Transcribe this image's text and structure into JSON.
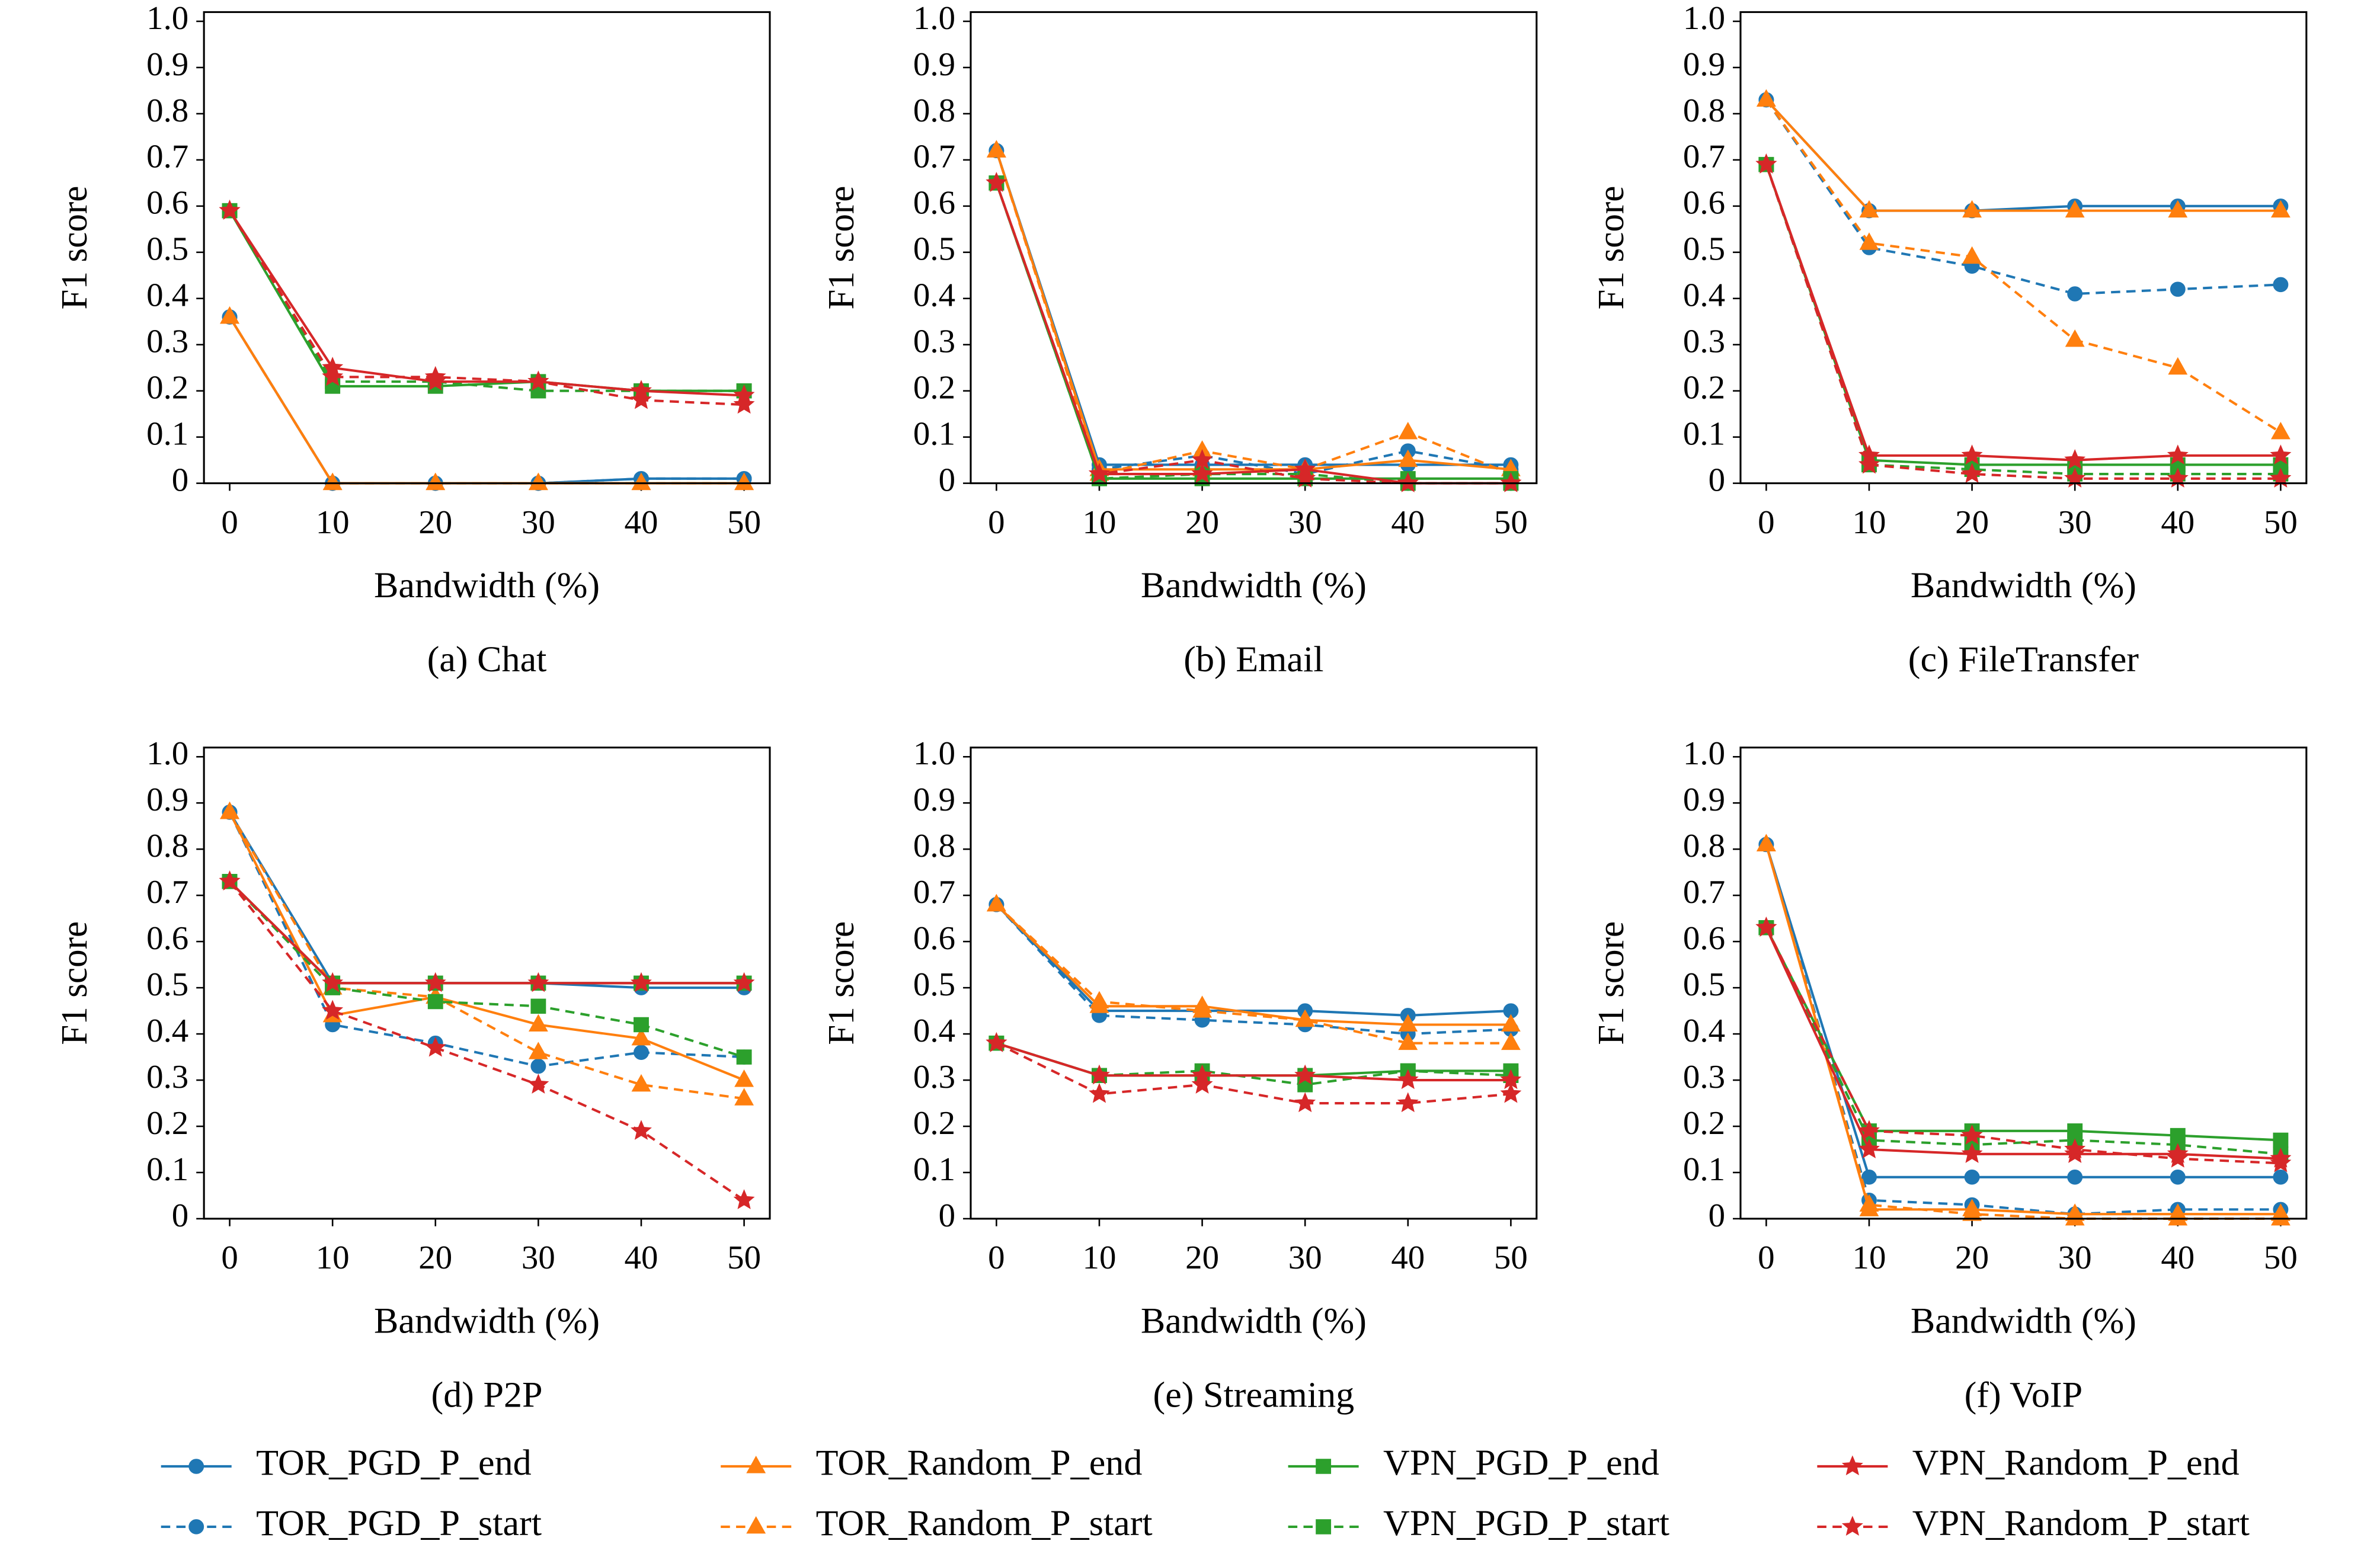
{
  "chart_data": [
    {
      "type": "line",
      "title": "(a) Chat",
      "xlabel": "Bandwidth (%)",
      "ylabel": "F1 score",
      "x": [
        0,
        10,
        20,
        30,
        40,
        50
      ],
      "xlim": [
        -2.5,
        52.5
      ],
      "ylim": [
        0,
        1.02
      ],
      "xticks": [
        0,
        10,
        20,
        30,
        40,
        50
      ],
      "yticks": [
        0,
        0.1,
        0.2,
        0.3,
        0.4,
        0.5,
        0.6,
        0.7,
        0.8,
        0.9,
        {
          "value": 1,
          "label": "1.0"
        }
      ],
      "series": [
        {
          "name": "TOR_PGD_P_end",
          "color": "#1f77b4",
          "marker": "circle",
          "dashed": false,
          "values": [
            0.36,
            0,
            0,
            0,
            0.01,
            0.01
          ]
        },
        {
          "name": "TOR_PGD_P_start",
          "color": "#1f77b4",
          "marker": "circle",
          "dashed": true,
          "values": [
            0.36,
            0,
            0,
            0,
            0.01,
            0.01
          ]
        },
        {
          "name": "TOR_Random_P_end",
          "color": "#ff7f0e",
          "marker": "triangle",
          "dashed": false,
          "values": [
            0.36,
            0,
            0,
            0,
            0,
            0
          ]
        },
        {
          "name": "TOR_Random_P_start",
          "color": "#ff7f0e",
          "marker": "triangle",
          "dashed": true,
          "values": [
            0.36,
            0,
            0,
            0,
            0,
            0
          ]
        },
        {
          "name": "VPN_PGD_P_end",
          "color": "#2ca02c",
          "marker": "square",
          "dashed": false,
          "values": [
            0.59,
            0.21,
            0.21,
            0.22,
            0.2,
            0.2
          ]
        },
        {
          "name": "VPN_PGD_P_start",
          "color": "#2ca02c",
          "marker": "square",
          "dashed": true,
          "values": [
            0.59,
            0.22,
            0.22,
            0.2,
            0.2,
            0.2
          ]
        },
        {
          "name": "VPN_Random_P_end",
          "color": "#d62728",
          "marker": "star",
          "dashed": false,
          "values": [
            0.59,
            0.25,
            0.22,
            0.22,
            0.2,
            0.19
          ]
        },
        {
          "name": "VPN_Random_P_start",
          "color": "#d62728",
          "marker": "star",
          "dashed": true,
          "values": [
            0.59,
            0.23,
            0.23,
            0.22,
            0.18,
            0.17
          ]
        }
      ]
    },
    {
      "type": "line",
      "title": "(b) Email",
      "xlabel": "Bandwidth (%)",
      "ylabel": "F1 score",
      "x": [
        0,
        10,
        20,
        30,
        40,
        50
      ],
      "xlim": [
        -2.5,
        52.5
      ],
      "ylim": [
        0,
        1.02
      ],
      "xticks": [
        0,
        10,
        20,
        30,
        40,
        50
      ],
      "yticks": [
        0,
        0.1,
        0.2,
        0.3,
        0.4,
        0.5,
        0.6,
        0.7,
        0.8,
        0.9,
        {
          "value": 1,
          "label": "1.0"
        }
      ],
      "series": [
        {
          "name": "TOR_PGD_P_end",
          "color": "#1f77b4",
          "marker": "circle",
          "dashed": false,
          "values": [
            0.72,
            0.04,
            0.04,
            0.04,
            0.04,
            0.04
          ]
        },
        {
          "name": "TOR_PGD_P_start",
          "color": "#1f77b4",
          "marker": "circle",
          "dashed": true,
          "values": [
            0.72,
            0.03,
            0.06,
            0.02,
            0.07,
            0.03
          ]
        },
        {
          "name": "TOR_Random_P_end",
          "color": "#ff7f0e",
          "marker": "triangle",
          "dashed": false,
          "values": [
            0.72,
            0.03,
            0.03,
            0.03,
            0.05,
            0.03
          ]
        },
        {
          "name": "TOR_Random_P_start",
          "color": "#ff7f0e",
          "marker": "triangle",
          "dashed": true,
          "values": [
            0.72,
            0.02,
            0.07,
            0.03,
            0.11,
            0.02
          ]
        },
        {
          "name": "VPN_PGD_P_end",
          "color": "#2ca02c",
          "marker": "square",
          "dashed": false,
          "values": [
            0.65,
            0.01,
            0.01,
            0.01,
            0.01,
            0.01
          ]
        },
        {
          "name": "VPN_PGD_P_start",
          "color": "#2ca02c",
          "marker": "square",
          "dashed": true,
          "values": [
            0.65,
            0.01,
            0.02,
            0.02,
            0,
            0
          ]
        },
        {
          "name": "VPN_Random_P_end",
          "color": "#d62728",
          "marker": "star",
          "dashed": false,
          "values": [
            0.65,
            0.02,
            0.02,
            0.03,
            0,
            0
          ]
        },
        {
          "name": "VPN_Random_P_start",
          "color": "#d62728",
          "marker": "star",
          "dashed": true,
          "values": [
            0.65,
            0.02,
            0.05,
            0.01,
            0,
            0
          ]
        }
      ]
    },
    {
      "type": "line",
      "title": "(c) FileTransfer",
      "xlabel": "Bandwidth (%)",
      "ylabel": "F1 score",
      "x": [
        0,
        10,
        20,
        30,
        40,
        50
      ],
      "xlim": [
        -2.5,
        52.5
      ],
      "ylim": [
        0,
        1.02
      ],
      "xticks": [
        0,
        10,
        20,
        30,
        40,
        50
      ],
      "yticks": [
        0,
        0.1,
        0.2,
        0.3,
        0.4,
        0.5,
        0.6,
        0.7,
        0.8,
        0.9,
        {
          "value": 1,
          "label": "1.0"
        }
      ],
      "series": [
        {
          "name": "TOR_PGD_P_end",
          "color": "#1f77b4",
          "marker": "circle",
          "dashed": false,
          "values": [
            0.83,
            0.59,
            0.59,
            0.6,
            0.6,
            0.6
          ]
        },
        {
          "name": "TOR_PGD_P_start",
          "color": "#1f77b4",
          "marker": "circle",
          "dashed": true,
          "values": [
            0.83,
            0.51,
            0.47,
            0.41,
            0.42,
            0.43
          ]
        },
        {
          "name": "TOR_Random_P_end",
          "color": "#ff7f0e",
          "marker": "triangle",
          "dashed": false,
          "values": [
            0.83,
            0.59,
            0.59,
            0.59,
            0.59,
            0.59
          ]
        },
        {
          "name": "TOR_Random_P_start",
          "color": "#ff7f0e",
          "marker": "triangle",
          "dashed": true,
          "values": [
            0.83,
            0.52,
            0.49,
            0.31,
            0.25,
            0.11
          ]
        },
        {
          "name": "VPN_PGD_P_end",
          "color": "#2ca02c",
          "marker": "square",
          "dashed": false,
          "values": [
            0.69,
            0.05,
            0.04,
            0.04,
            0.04,
            0.04
          ]
        },
        {
          "name": "VPN_PGD_P_start",
          "color": "#2ca02c",
          "marker": "square",
          "dashed": true,
          "values": [
            0.69,
            0.04,
            0.03,
            0.02,
            0.02,
            0.02
          ]
        },
        {
          "name": "VPN_Random_P_end",
          "color": "#d62728",
          "marker": "star",
          "dashed": false,
          "values": [
            0.69,
            0.06,
            0.06,
            0.05,
            0.06,
            0.06
          ]
        },
        {
          "name": "VPN_Random_P_start",
          "color": "#d62728",
          "marker": "star",
          "dashed": true,
          "values": [
            0.69,
            0.04,
            0.02,
            0.01,
            0.01,
            0.01
          ]
        }
      ]
    },
    {
      "type": "line",
      "title": "(d) P2P",
      "xlabel": "Bandwidth (%)",
      "ylabel": "F1 score",
      "x": [
        0,
        10,
        20,
        30,
        40,
        50
      ],
      "xlim": [
        -2.5,
        52.5
      ],
      "ylim": [
        0,
        1.02
      ],
      "xticks": [
        0,
        10,
        20,
        30,
        40,
        50
      ],
      "yticks": [
        0,
        0.1,
        0.2,
        0.3,
        0.4,
        0.5,
        0.6,
        0.7,
        0.8,
        0.9,
        {
          "value": 1,
          "label": "1.0"
        }
      ],
      "series": [
        {
          "name": "TOR_PGD_P_end",
          "color": "#1f77b4",
          "marker": "circle",
          "dashed": false,
          "values": [
            0.88,
            0.51,
            0.51,
            0.51,
            0.5,
            0.5
          ]
        },
        {
          "name": "TOR_PGD_P_start",
          "color": "#1f77b4",
          "marker": "circle",
          "dashed": true,
          "values": [
            0.88,
            0.42,
            0.38,
            0.33,
            0.36,
            0.35
          ]
        },
        {
          "name": "TOR_Random_P_end",
          "color": "#ff7f0e",
          "marker": "triangle",
          "dashed": false,
          "values": [
            0.88,
            0.44,
            0.48,
            0.42,
            0.39,
            0.3
          ]
        },
        {
          "name": "TOR_Random_P_start",
          "color": "#ff7f0e",
          "marker": "triangle",
          "dashed": true,
          "values": [
            0.88,
            0.5,
            0.48,
            0.36,
            0.29,
            0.26
          ]
        },
        {
          "name": "VPN_PGD_P_end",
          "color": "#2ca02c",
          "marker": "square",
          "dashed": false,
          "values": [
            0.73,
            0.51,
            0.51,
            0.51,
            0.51,
            0.51
          ]
        },
        {
          "name": "VPN_PGD_P_start",
          "color": "#2ca02c",
          "marker": "square",
          "dashed": true,
          "values": [
            0.73,
            0.5,
            0.47,
            0.46,
            0.42,
            0.35
          ]
        },
        {
          "name": "VPN_Random_P_end",
          "color": "#d62728",
          "marker": "star",
          "dashed": false,
          "values": [
            0.73,
            0.51,
            0.51,
            0.51,
            0.51,
            0.51
          ]
        },
        {
          "name": "VPN_Random_P_start",
          "color": "#d62728",
          "marker": "star",
          "dashed": true,
          "values": [
            0.73,
            0.45,
            0.37,
            0.29,
            0.19,
            0.04
          ]
        }
      ]
    },
    {
      "type": "line",
      "title": "(e) Streaming",
      "xlabel": "Bandwidth (%)",
      "ylabel": "F1 score",
      "x": [
        0,
        10,
        20,
        30,
        40,
        50
      ],
      "xlim": [
        -2.5,
        52.5
      ],
      "ylim": [
        0,
        1.02
      ],
      "xticks": [
        0,
        10,
        20,
        30,
        40,
        50
      ],
      "yticks": [
        0,
        0.1,
        0.2,
        0.3,
        0.4,
        0.5,
        0.6,
        0.7,
        0.8,
        0.9,
        {
          "value": 1,
          "label": "1.0"
        }
      ],
      "series": [
        {
          "name": "TOR_PGD_P_end",
          "color": "#1f77b4",
          "marker": "circle",
          "dashed": false,
          "values": [
            0.68,
            0.45,
            0.45,
            0.45,
            0.44,
            0.45
          ]
        },
        {
          "name": "TOR_PGD_P_start",
          "color": "#1f77b4",
          "marker": "circle",
          "dashed": true,
          "values": [
            0.68,
            0.44,
            0.43,
            0.42,
            0.4,
            0.41
          ]
        },
        {
          "name": "TOR_Random_P_end",
          "color": "#ff7f0e",
          "marker": "triangle",
          "dashed": false,
          "values": [
            0.68,
            0.46,
            0.46,
            0.43,
            0.42,
            0.42
          ]
        },
        {
          "name": "TOR_Random_P_start",
          "color": "#ff7f0e",
          "marker": "triangle",
          "dashed": true,
          "values": [
            0.68,
            0.47,
            0.45,
            0.43,
            0.38,
            0.38
          ]
        },
        {
          "name": "VPN_PGD_P_end",
          "color": "#2ca02c",
          "marker": "square",
          "dashed": false,
          "values": [
            0.38,
            0.31,
            0.31,
            0.31,
            0.32,
            0.32
          ]
        },
        {
          "name": "VPN_PGD_P_start",
          "color": "#2ca02c",
          "marker": "square",
          "dashed": true,
          "values": [
            0.38,
            0.31,
            0.32,
            0.29,
            0.32,
            0.31
          ]
        },
        {
          "name": "VPN_Random_P_end",
          "color": "#d62728",
          "marker": "star",
          "dashed": false,
          "values": [
            0.38,
            0.31,
            0.31,
            0.31,
            0.3,
            0.3
          ]
        },
        {
          "name": "VPN_Random_P_start",
          "color": "#d62728",
          "marker": "star",
          "dashed": true,
          "values": [
            0.38,
            0.27,
            0.29,
            0.25,
            0.25,
            0.27
          ]
        }
      ]
    },
    {
      "type": "line",
      "title": "(f) VoIP",
      "xlabel": "Bandwidth (%)",
      "ylabel": "F1 score",
      "x": [
        0,
        10,
        20,
        30,
        40,
        50
      ],
      "xlim": [
        -2.5,
        52.5
      ],
      "ylim": [
        0,
        1.02
      ],
      "xticks": [
        0,
        10,
        20,
        30,
        40,
        50
      ],
      "yticks": [
        0,
        0.1,
        0.2,
        0.3,
        0.4,
        0.5,
        0.6,
        0.7,
        0.8,
        0.9,
        {
          "value": 1,
          "label": "1.0"
        }
      ],
      "series": [
        {
          "name": "TOR_PGD_P_end",
          "color": "#1f77b4",
          "marker": "circle",
          "dashed": false,
          "values": [
            0.81,
            0.09,
            0.09,
            0.09,
            0.09,
            0.09
          ]
        },
        {
          "name": "TOR_PGD_P_start",
          "color": "#1f77b4",
          "marker": "circle",
          "dashed": true,
          "values": [
            0.81,
            0.04,
            0.03,
            0.01,
            0.02,
            0.02
          ]
        },
        {
          "name": "TOR_Random_P_end",
          "color": "#ff7f0e",
          "marker": "triangle",
          "dashed": false,
          "values": [
            0.81,
            0.02,
            0.02,
            0.01,
            0.01,
            0.01
          ]
        },
        {
          "name": "TOR_Random_P_start",
          "color": "#ff7f0e",
          "marker": "triangle",
          "dashed": true,
          "values": [
            0.81,
            0.03,
            0.01,
            0,
            0,
            0
          ]
        },
        {
          "name": "VPN_PGD_P_end",
          "color": "#2ca02c",
          "marker": "square",
          "dashed": false,
          "values": [
            0.63,
            0.19,
            0.19,
            0.19,
            0.18,
            0.17
          ]
        },
        {
          "name": "VPN_PGD_P_start",
          "color": "#2ca02c",
          "marker": "square",
          "dashed": true,
          "values": [
            0.63,
            0.17,
            0.16,
            0.17,
            0.16,
            0.14
          ]
        },
        {
          "name": "VPN_Random_P_end",
          "color": "#d62728",
          "marker": "star",
          "dashed": false,
          "values": [
            0.63,
            0.15,
            0.14,
            0.14,
            0.14,
            0.13
          ]
        },
        {
          "name": "VPN_Random_P_start",
          "color": "#d62728",
          "marker": "star",
          "dashed": true,
          "values": [
            0.63,
            0.19,
            0.18,
            0.15,
            0.13,
            0.12
          ]
        }
      ]
    }
  ]
}
